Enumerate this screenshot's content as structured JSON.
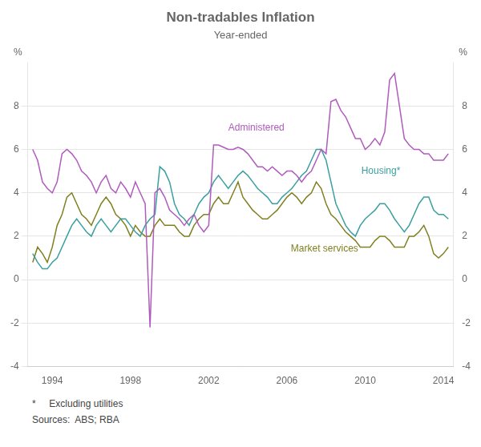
{
  "chart_data": {
    "type": "line",
    "title": "Non-tradables Inflation",
    "subtitle": "Year-ended",
    "ylabel": "%",
    "y2label": "%",
    "footnotes": [
      "*     Excluding utilities",
      "Sources:  ABS; RBA"
    ],
    "xlim": [
      1992.75,
      2014.5
    ],
    "xticks": [
      1994,
      1998,
      2002,
      2006,
      2010,
      2014
    ],
    "ylim": [
      -4,
      10
    ],
    "yticks": [
      -4,
      -2,
      0,
      2,
      4,
      6,
      8
    ],
    "y2lim": [
      -4,
      10
    ],
    "y2ticks": [
      -4,
      -2,
      0,
      2,
      4,
      6,
      8
    ],
    "grid": true,
    "x": [
      1993.0,
      1993.25,
      1993.5,
      1993.75,
      1994.0,
      1994.25,
      1994.5,
      1994.75,
      1995.0,
      1995.25,
      1995.5,
      1995.75,
      1996.0,
      1996.25,
      1996.5,
      1996.75,
      1997.0,
      1997.25,
      1997.5,
      1997.75,
      1998.0,
      1998.25,
      1998.5,
      1998.75,
      1999.0,
      1999.25,
      1999.5,
      1999.75,
      2000.0,
      2000.25,
      2000.5,
      2000.75,
      2001.0,
      2001.25,
      2001.5,
      2001.75,
      2002.0,
      2002.25,
      2002.5,
      2002.75,
      2003.0,
      2003.25,
      2003.5,
      2003.75,
      2004.0,
      2004.25,
      2004.5,
      2004.75,
      2005.0,
      2005.25,
      2005.5,
      2005.75,
      2006.0,
      2006.25,
      2006.5,
      2006.75,
      2007.0,
      2007.25,
      2007.5,
      2007.75,
      2008.0,
      2008.25,
      2008.5,
      2008.75,
      2009.0,
      2009.25,
      2009.5,
      2009.75,
      2010.0,
      2010.25,
      2010.5,
      2010.75,
      2011.0,
      2011.25,
      2011.5,
      2011.75,
      2012.0,
      2012.25,
      2012.5,
      2012.75,
      2013.0,
      2013.25,
      2013.5,
      2013.75,
      2014.0,
      2014.25
    ],
    "series": [
      {
        "color": "#b05bbd",
        "values": [
          6.0,
          5.5,
          4.5,
          4.2,
          4.0,
          4.5,
          5.8,
          6.0,
          5.8,
          5.5,
          5.0,
          4.8,
          4.5,
          4.0,
          4.5,
          4.8,
          4.2,
          4.0,
          4.5,
          4.2,
          3.8,
          4.5,
          4.0,
          3.5,
          -2.2,
          4.0,
          4.2,
          3.8,
          3.2,
          3.0,
          2.8,
          2.5,
          2.8,
          3.0,
          2.5,
          2.2,
          2.5,
          6.2,
          6.2,
          6.1,
          6.0,
          6.0,
          6.1,
          6.0,
          5.8,
          5.5,
          5.2,
          5.2,
          5.0,
          5.2,
          5.0,
          4.8,
          5.0,
          5.0,
          4.8,
          4.5,
          4.8,
          5.0,
          5.5,
          6.0,
          5.8,
          8.2,
          8.3,
          7.8,
          7.5,
          7.0,
          6.5,
          6.5,
          6.0,
          6.2,
          6.5,
          6.2,
          6.8,
          9.2,
          9.5,
          8.0,
          6.5,
          6.2,
          6.0,
          6.0,
          5.8,
          5.8,
          5.5,
          5.5,
          5.5,
          5.8
        ]
      },
      {
        "color": "#3a9fa0",
        "values": [
          1.2,
          0.8,
          0.5,
          0.5,
          0.8,
          1.0,
          1.5,
          2.0,
          2.5,
          2.8,
          2.5,
          2.2,
          2.0,
          2.5,
          2.8,
          2.5,
          2.2,
          2.5,
          2.8,
          2.8,
          2.5,
          2.2,
          2.0,
          2.5,
          2.8,
          3.0,
          5.2,
          5.0,
          4.5,
          3.5,
          3.0,
          2.8,
          2.5,
          3.0,
          3.5,
          3.8,
          4.0,
          4.5,
          4.8,
          4.5,
          4.2,
          4.5,
          4.8,
          5.0,
          4.8,
          4.5,
          4.2,
          4.0,
          3.8,
          3.5,
          3.5,
          3.8,
          4.0,
          4.2,
          4.5,
          4.8,
          5.0,
          5.5,
          6.0,
          6.0,
          5.5,
          4.5,
          3.5,
          3.0,
          2.5,
          2.2,
          2.0,
          2.5,
          2.8,
          3.0,
          3.2,
          3.5,
          3.5,
          3.2,
          2.8,
          2.5,
          2.2,
          2.5,
          3.0,
          3.5,
          3.8,
          3.8,
          3.2,
          3.0,
          3.0,
          2.8
        ]
      },
      {
        "color": "#808020",
        "values": [
          0.8,
          1.5,
          1.2,
          0.8,
          1.5,
          2.5,
          3.0,
          3.8,
          4.0,
          3.5,
          3.0,
          2.8,
          2.5,
          3.0,
          3.5,
          3.8,
          3.5,
          3.0,
          2.8,
          2.5,
          2.0,
          2.5,
          2.2,
          2.0,
          2.0,
          2.5,
          2.8,
          2.5,
          2.5,
          2.5,
          2.2,
          2.0,
          2.0,
          2.5,
          2.8,
          3.0,
          3.0,
          3.5,
          3.8,
          3.5,
          3.5,
          4.0,
          4.5,
          3.8,
          3.5,
          3.2,
          3.0,
          2.8,
          2.8,
          3.0,
          3.2,
          3.5,
          3.8,
          4.0,
          3.8,
          3.5,
          3.8,
          4.0,
          4.5,
          4.2,
          3.5,
          3.0,
          2.8,
          2.5,
          2.2,
          2.0,
          1.8,
          1.5,
          1.5,
          1.5,
          1.8,
          2.0,
          2.0,
          1.8,
          1.5,
          1.5,
          1.5,
          2.0,
          2.0,
          2.2,
          2.5,
          2.0,
          1.2,
          1.0,
          1.2,
          1.5
        ]
      }
    ],
    "annotations": [
      {
        "text": "Administered",
        "x": 2003.0,
        "y": 7.0,
        "color": "#b05bbd"
      },
      {
        "text": "Housing*",
        "x": 2009.8,
        "y": 5.0,
        "color": "#3a9fa0"
      },
      {
        "text": "Market services",
        "x": 2006.2,
        "y": 1.4,
        "color": "#808020"
      }
    ]
  }
}
